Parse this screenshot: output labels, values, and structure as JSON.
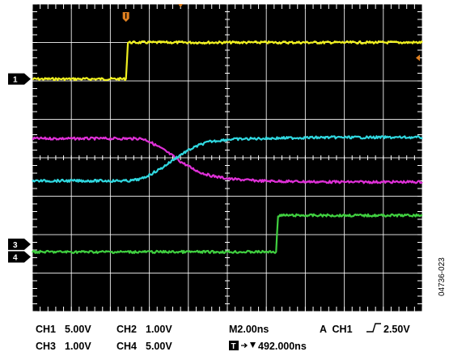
{
  "chart_data": {
    "type": "line",
    "x_unit": "ns",
    "xlim": [
      -7.6,
      12.4
    ],
    "ylim": [
      -4,
      4
    ],
    "grid": true,
    "trigger_position_ns": 0,
    "time_per_div_ns": 2,
    "series": [
      {
        "channel": "1",
        "color": "#f0f020",
        "description": "yellow step, low to high",
        "x": [
          -7.6,
          -2.8,
          -2.7,
          12.4
        ],
        "y": [
          2.05,
          2.05,
          3.0,
          3.0
        ]
      },
      {
        "channel": "2",
        "color": "#e030d8",
        "description": "magenta, falling",
        "x": [
          -7.6,
          -2.0,
          -1.7,
          -1.0,
          -0.4,
          0.0,
          0.5,
          1.0,
          1.5,
          2.5,
          4.0,
          6.0,
          8.0,
          12.4
        ],
        "y": [
          0.5,
          0.5,
          0.45,
          0.25,
          0.05,
          -0.1,
          -0.25,
          -0.38,
          -0.46,
          -0.55,
          -0.6,
          -0.62,
          -0.63,
          -0.63
        ]
      },
      {
        "channel": "3",
        "color": "#30d8e0",
        "description": "cyan, rising",
        "x": [
          -7.6,
          -2.6,
          -2.0,
          -1.5,
          -1.0,
          -0.5,
          0.0,
          0.5,
          1.0,
          1.5,
          2.5,
          4.0,
          6.0,
          8.0,
          12.4
        ],
        "y": [
          -0.6,
          -0.6,
          -0.55,
          -0.42,
          -0.28,
          -0.1,
          0.08,
          0.22,
          0.34,
          0.42,
          0.48,
          0.5,
          0.52,
          0.53,
          0.53
        ]
      },
      {
        "channel": "4",
        "color": "#40d040",
        "description": "green step, low to high",
        "x": [
          -7.6,
          4.9,
          5.0,
          12.4
        ],
        "y": [
          -2.45,
          -2.45,
          -1.5,
          -1.5
        ]
      }
    ],
    "channel_markers": [
      {
        "label": "1",
        "level": 2.05
      },
      {
        "label": "3",
        "level": -2.25
      },
      {
        "label": "4",
        "level": -2.58
      }
    ]
  },
  "readout": {
    "ch1_label": "CH1",
    "ch1_scale": "5.00V",
    "ch2_label": "CH2",
    "ch2_scale": "1.00V",
    "time_base": "M2.00ns",
    "trigger": "A  CH1",
    "trigger_level": "2.50V",
    "ch3_label": "CH3",
    "ch3_scale": "1.00V",
    "ch4_label": "CH4",
    "ch4_scale": "5.00V",
    "trigger_icon_label": "T",
    "delay": "492.000ns"
  },
  "figure_number": "04736-023",
  "colors": {
    "screen": "#000000",
    "grid": "#ffffff",
    "trigger_marker": "#e08020"
  }
}
